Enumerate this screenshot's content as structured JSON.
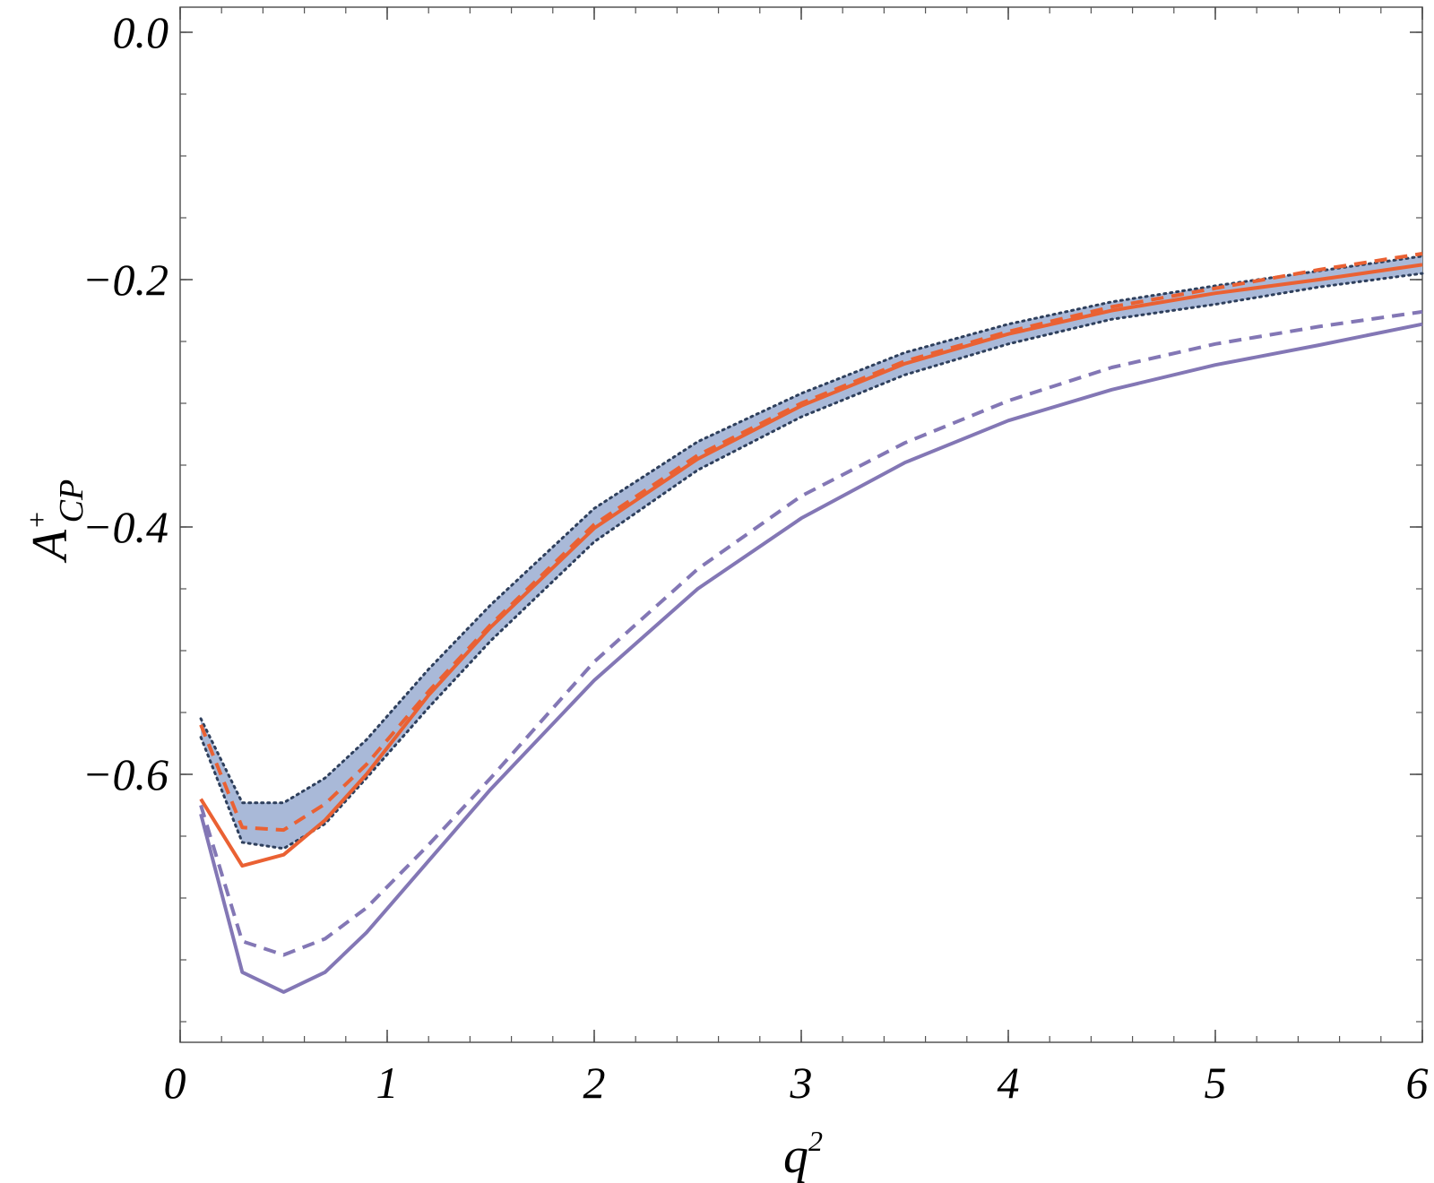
{
  "chart_data": {
    "type": "line",
    "title": "",
    "xlabel": {
      "base": "q",
      "sup": "2"
    },
    "ylabel": {
      "base": "A",
      "sup": "+",
      "sub": "CP"
    },
    "xlim": [
      0,
      6
    ],
    "ylim": [
      -0.8,
      0.0
    ],
    "x_ticks": [
      0,
      1,
      2,
      3,
      4,
      5,
      6
    ],
    "x_tick_labels": [
      "0",
      "1",
      "2",
      "3",
      "4",
      "5",
      "6"
    ],
    "y_ticks": [
      0.0,
      -0.2,
      -0.4,
      -0.6
    ],
    "y_tick_labels": [
      "0.0",
      "−0.2",
      "−0.4",
      "−0.6"
    ],
    "x_minor_step": 0.2,
    "y_minor_step": 0.05,
    "grid": false,
    "legend": "none",
    "colors": {
      "orange": "#ea6133",
      "purple": "#8377b5",
      "band_fill": "#a9b9d8",
      "band_edge": "#2e3f5c"
    },
    "band": {
      "x": [
        0.1,
        0.3,
        0.5,
        0.7,
        0.9,
        1.2,
        1.5,
        2.0,
        2.5,
        3.0,
        3.5,
        4.0,
        4.5,
        5.0,
        5.5,
        6.0
      ],
      "upper": [
        -0.555,
        -0.623,
        -0.623,
        -0.603,
        -0.572,
        -0.515,
        -0.463,
        -0.385,
        -0.331,
        -0.292,
        -0.259,
        -0.236,
        -0.218,
        -0.205,
        -0.193,
        -0.181
      ],
      "lower": [
        -0.57,
        -0.655,
        -0.66,
        -0.64,
        -0.603,
        -0.546,
        -0.492,
        -0.412,
        -0.354,
        -0.311,
        -0.277,
        -0.252,
        -0.232,
        -0.22,
        -0.206,
        -0.195
      ]
    },
    "series": [
      {
        "color": "#ea6133",
        "dash": "solid",
        "x": [
          0.1,
          0.3,
          0.5,
          0.7,
          0.9,
          1.2,
          1.5,
          2.0,
          2.5,
          3.0,
          3.5,
          4.0,
          4.5,
          5.0,
          5.5,
          6.0
        ],
        "y": [
          -0.62,
          -0.674,
          -0.665,
          -0.637,
          -0.6,
          -0.536,
          -0.481,
          -0.401,
          -0.345,
          -0.302,
          -0.268,
          -0.244,
          -0.225,
          -0.211,
          -0.2,
          -0.188
        ]
      },
      {
        "color": "#ea6133",
        "dash": "dashed",
        "x": [
          0.1,
          0.3,
          0.5,
          0.7,
          0.9,
          1.2,
          1.5,
          2.0,
          2.5,
          3.0,
          3.5,
          4.0,
          4.5,
          5.0,
          5.5,
          6.0
        ],
        "y": [
          -0.56,
          -0.643,
          -0.645,
          -0.624,
          -0.592,
          -0.533,
          -0.479,
          -0.398,
          -0.342,
          -0.3,
          -0.266,
          -0.242,
          -0.222,
          -0.207,
          -0.192,
          -0.179
        ]
      },
      {
        "color": "#8377b5",
        "dash": "solid",
        "x": [
          0.1,
          0.3,
          0.5,
          0.7,
          0.9,
          1.2,
          1.5,
          2.0,
          2.5,
          3.0,
          3.5,
          4.0,
          4.5,
          5.0,
          5.5,
          6.0
        ],
        "y": [
          -0.632,
          -0.76,
          -0.776,
          -0.76,
          -0.728,
          -0.67,
          -0.612,
          -0.524,
          -0.45,
          -0.393,
          -0.348,
          -0.314,
          -0.289,
          -0.269,
          -0.253,
          -0.236
        ]
      },
      {
        "color": "#8377b5",
        "dash": "dashed",
        "x": [
          0.1,
          0.3,
          0.5,
          0.7,
          0.9,
          1.2,
          1.5,
          2.0,
          2.5,
          3.0,
          3.5,
          4.0,
          4.5,
          5.0,
          5.5,
          6.0
        ],
        "y": [
          -0.625,
          -0.735,
          -0.746,
          -0.733,
          -0.708,
          -0.657,
          -0.603,
          -0.509,
          -0.434,
          -0.375,
          -0.332,
          -0.298,
          -0.271,
          -0.252,
          -0.238,
          -0.226
        ]
      }
    ]
  }
}
